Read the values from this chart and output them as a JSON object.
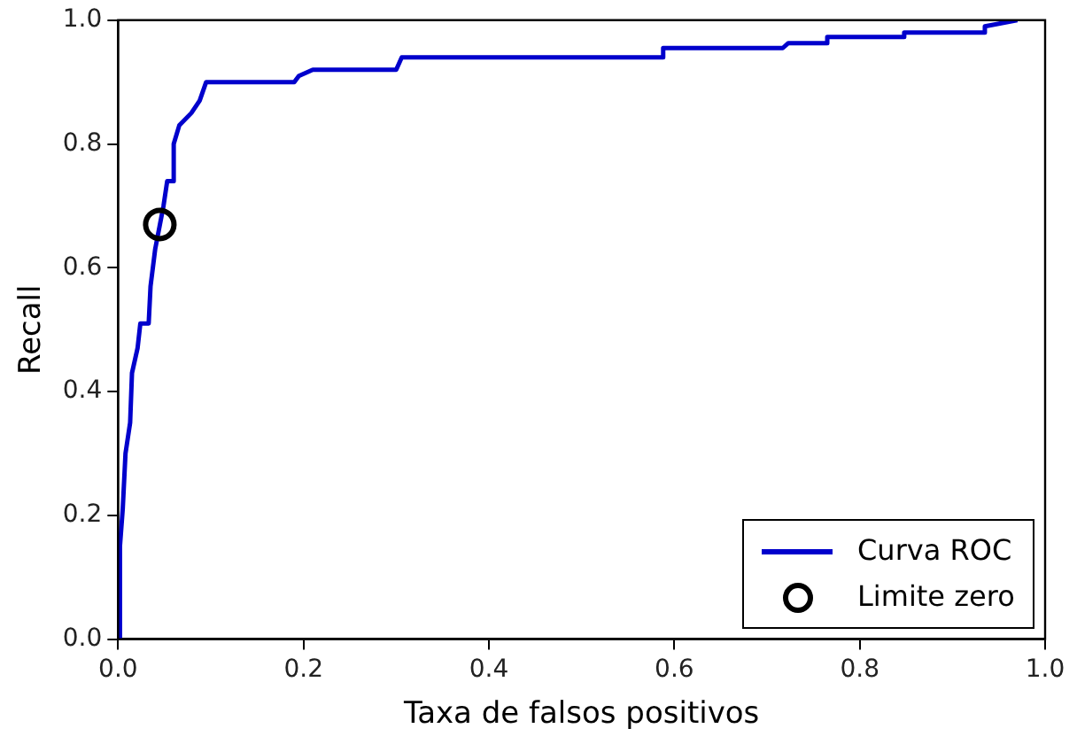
{
  "chart_data": {
    "type": "line",
    "xlabel": "Taxa de falsos positivos",
    "ylabel": "Recall",
    "xlim": [
      0,
      1
    ],
    "ylim": [
      0,
      1
    ],
    "xticks": [
      {
        "value": 0,
        "label": "0.0"
      },
      {
        "value": 0.2,
        "label": "0.2"
      },
      {
        "value": 0.4,
        "label": "0.4"
      },
      {
        "value": 0.6,
        "label": "0.6"
      },
      {
        "value": 0.8,
        "label": "0.8"
      },
      {
        "value": 1,
        "label": "1.0"
      }
    ],
    "yticks": [
      {
        "value": 0,
        "label": "0.0"
      },
      {
        "value": 0.2,
        "label": "0.2"
      },
      {
        "value": 0.4,
        "label": "0.4"
      },
      {
        "value": 0.6,
        "label": "0.6"
      },
      {
        "value": 0.8,
        "label": "0.8"
      },
      {
        "value": 1,
        "label": "1.0"
      }
    ],
    "grid": false,
    "legend": "bottom right",
    "series": [
      {
        "name": "Curva ROC",
        "color": "#0000cc",
        "marker": "none",
        "x": [
          0.002,
          0.002,
          0.005,
          0.008,
          0.013,
          0.015,
          0.021,
          0.024,
          0.033,
          0.035,
          0.04,
          0.049,
          0.053,
          0.06,
          0.06,
          0.066,
          0.079,
          0.088,
          0.095,
          0.19,
          0.195,
          0.21,
          0.3,
          0.306,
          0.527,
          0.588,
          0.588,
          0.717,
          0.723,
          0.765,
          0.765,
          0.848,
          0.848,
          0.935,
          0.935,
          0.97
        ],
        "values": [
          0,
          0.15,
          0.21,
          0.3,
          0.35,
          0.43,
          0.47,
          0.51,
          0.51,
          0.57,
          0.63,
          0.7,
          0.74,
          0.74,
          0.8,
          0.83,
          0.85,
          0.87,
          0.9,
          0.9,
          0.91,
          0.92,
          0.92,
          0.94,
          0.94,
          0.94,
          0.955,
          0.955,
          0.963,
          0.963,
          0.973,
          0.973,
          0.98,
          0.98,
          0.99,
          1
        ]
      },
      {
        "name": "Limite zero",
        "type": "scatter",
        "color": "#000000",
        "marker": "circle",
        "x": [
          0.045
        ],
        "values": [
          0.67
        ]
      }
    ]
  }
}
